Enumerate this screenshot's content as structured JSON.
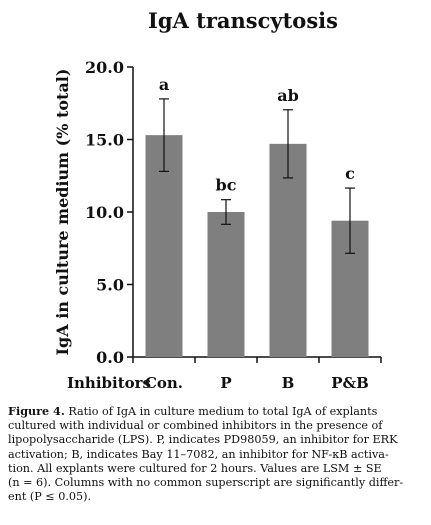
{
  "chart_data": {
    "type": "bar",
    "title": "IgA transcytosis",
    "ylabel": "IgA in culture medium (% total)",
    "xlabel": "Inhibitors",
    "categories": [
      "Con.",
      "P",
      "B",
      "P&B"
    ],
    "values": [
      15.3,
      10.0,
      14.7,
      9.4
    ],
    "errors": [
      2.5,
      0.85,
      2.35,
      2.25
    ],
    "significance": [
      "a",
      "bc",
      "ab",
      "c"
    ],
    "ylim": [
      0,
      20
    ],
    "yticks": [
      "0.0",
      "5.0",
      "10.0",
      "15.0",
      "20.0"
    ],
    "ytick_values": [
      0,
      5,
      10,
      15,
      20
    ],
    "grid": false,
    "bar_color": "#7f7f7f"
  },
  "caption": {
    "label": "Figure 4.",
    "lines": [
      "Ratio of IgA in culture medium to total IgA of explants",
      "cultured with individual or combined inhibitors in the presence of",
      "lipopolysaccharide (LPS). P, indicates PD98059, an inhibitor for ERK",
      "activation; B, indicates Bay 11–7082, an inhibitor for NF-κB activa-",
      "tion. All explants were cultured for 2 hours. Values are LSM ± SE",
      "(n = 6). Columns with no common superscript are significantly differ-",
      "ent (P ≤ 0.05)."
    ]
  }
}
